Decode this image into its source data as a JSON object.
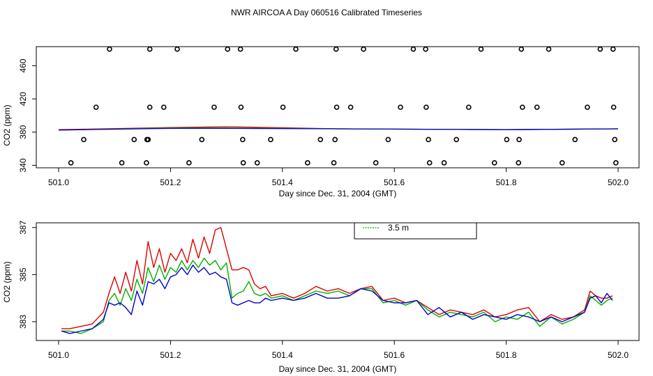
{
  "title": "NWR AIRCOA A  Day 060516  Calibrated Timeseries",
  "colors": {
    "red": "#dd0000",
    "green": "#00b000",
    "blue": "#0000cc",
    "black": "#000000"
  },
  "chart_data": [
    {
      "type": "scatter",
      "xlabel": "Day since Dec. 31, 2004 (GMT)",
      "ylabel": "CO2 (ppm)",
      "xlim": [
        501.0,
        502.0
      ],
      "ylim": [
        337,
        483
      ],
      "xticks": [
        501.0,
        501.2,
        501.4,
        501.6,
        501.8,
        502.0
      ],
      "xtick_labels": [
        "501.0",
        "501.2",
        "501.4",
        "501.6",
        "501.8",
        "502.0"
      ],
      "yticks": [
        340,
        380,
        420,
        460
      ],
      "ytick_labels": [
        "340",
        "380",
        "420",
        "460"
      ],
      "points": [
        {
          "y": 480,
          "x": [
            501.091,
            501.163,
            501.212,
            501.302,
            501.325,
            501.424,
            501.496,
            501.545,
            501.634,
            501.656,
            501.755,
            501.827,
            501.876,
            501.968,
            501.991
          ]
        },
        {
          "y": 410,
          "x": [
            501.067,
            501.163,
            501.188,
            501.278,
            501.326,
            501.401,
            501.497,
            501.522,
            501.611,
            501.657,
            501.733,
            501.829,
            501.855,
            501.945,
            501.992
          ]
        },
        {
          "y": 371,
          "x": [
            501.045,
            501.135,
            501.158,
            501.16,
            501.256,
            501.329,
            501.379,
            501.468,
            501.494,
            501.589,
            501.661,
            501.711,
            501.801,
            501.823,
            501.923,
            501.994
          ]
        },
        {
          "y": 343,
          "x": [
            501.022,
            501.113,
            501.157,
            501.233,
            501.33,
            501.355,
            501.445,
            501.492,
            501.567,
            501.663,
            501.689,
            501.779,
            501.822,
            501.9,
            501.996
          ]
        }
      ],
      "series": [
        {
          "color": "red",
          "x": [
            501.0,
            501.2,
            501.3,
            501.5,
            501.8,
            502.0
          ],
          "values": [
            383,
            385.5,
            386.5,
            384,
            383,
            384
          ]
        },
        {
          "color": "green",
          "x": [
            501.0,
            501.2,
            501.3,
            501.5,
            501.8,
            502.0
          ],
          "values": [
            382.5,
            385,
            385,
            384,
            383,
            384
          ]
        },
        {
          "color": "blue",
          "x": [
            501.0,
            501.2,
            501.3,
            501.5,
            501.8,
            502.0
          ],
          "values": [
            382.5,
            384.5,
            384.5,
            384,
            383,
            384
          ]
        }
      ]
    },
    {
      "type": "line",
      "xlabel": "Day since Dec. 31, 2004 (GMT)",
      "ylabel": "CO2 (ppm)",
      "xlim": [
        501.0,
        502.0
      ],
      "ylim": [
        382.2,
        387.2
      ],
      "xticks": [
        501.0,
        501.2,
        501.4,
        501.6,
        501.8,
        502.0
      ],
      "xtick_labels": [
        "501.0",
        "501.2",
        "501.4",
        "501.6",
        "501.8",
        "502.0"
      ],
      "yticks": [
        383,
        385,
        387
      ],
      "ytick_labels": [
        "383",
        "385",
        "387"
      ],
      "legend": {
        "position": "top-center",
        "entries": [
          {
            "label": "3.5 m",
            "color": "green"
          }
        ]
      },
      "series": [
        {
          "name": "",
          "color": "red",
          "x": [
            501.005,
            501.02,
            501.04,
            501.06,
            501.08,
            501.09,
            501.1,
            501.11,
            501.12,
            501.13,
            501.14,
            501.15,
            501.16,
            501.17,
            501.18,
            501.19,
            501.2,
            501.21,
            501.22,
            501.23,
            501.24,
            501.25,
            501.26,
            501.27,
            501.28,
            501.29,
            501.3,
            501.31,
            501.32,
            501.33,
            501.34,
            501.35,
            501.36,
            501.37,
            501.38,
            501.4,
            501.42,
            501.44,
            501.46,
            501.48,
            501.5,
            501.52,
            501.54,
            501.56,
            501.58,
            501.6,
            501.62,
            501.64,
            501.66,
            501.68,
            501.7,
            501.72,
            501.74,
            501.76,
            501.78,
            501.8,
            501.82,
            501.84,
            501.86,
            501.88,
            501.9,
            501.92,
            501.94,
            501.95,
            501.96,
            501.97,
            501.98,
            501.99
          ],
          "values": [
            382.7,
            382.7,
            382.8,
            382.9,
            383.4,
            384.2,
            384.9,
            384.2,
            385.1,
            384.3,
            385.6,
            384.6,
            386.4,
            385.3,
            386.1,
            385.1,
            385.9,
            385.6,
            386.1,
            385.5,
            386.5,
            385.7,
            386.6,
            385.9,
            386.9,
            387.0,
            386.1,
            385.2,
            385.2,
            385.3,
            385.2,
            384.6,
            384.4,
            384.5,
            384.1,
            384.2,
            384.0,
            384.2,
            384.5,
            384.3,
            384.4,
            384.2,
            384.4,
            384.5,
            383.9,
            384.0,
            383.8,
            383.9,
            383.6,
            383.3,
            383.5,
            383.4,
            383.3,
            383.5,
            383.2,
            383.3,
            383.5,
            383.6,
            383.0,
            383.3,
            383.1,
            383.2,
            383.5,
            384.3,
            384.1,
            384.0,
            384.0,
            384.1
          ]
        },
        {
          "name": "3.5 m",
          "color": "green",
          "x": [
            501.005,
            501.02,
            501.04,
            501.06,
            501.08,
            501.09,
            501.1,
            501.11,
            501.12,
            501.13,
            501.14,
            501.15,
            501.16,
            501.17,
            501.18,
            501.19,
            501.2,
            501.21,
            501.22,
            501.23,
            501.24,
            501.25,
            501.26,
            501.27,
            501.28,
            501.29,
            501.3,
            501.31,
            501.32,
            501.33,
            501.34,
            501.35,
            501.36,
            501.37,
            501.38,
            501.4,
            501.42,
            501.44,
            501.46,
            501.48,
            501.5,
            501.52,
            501.54,
            501.56,
            501.58,
            501.6,
            501.62,
            501.64,
            501.66,
            501.68,
            501.7,
            501.72,
            501.74,
            501.76,
            501.78,
            501.8,
            501.82,
            501.84,
            501.86,
            501.88,
            501.9,
            501.92,
            501.94,
            501.95,
            501.96,
            501.97,
            501.98,
            501.99
          ],
          "values": [
            382.6,
            382.6,
            382.5,
            382.7,
            383.0,
            383.9,
            384.2,
            383.7,
            384.4,
            383.9,
            384.8,
            384.2,
            385.3,
            384.7,
            385.4,
            384.8,
            385.3,
            385.1,
            385.6,
            385.2,
            385.6,
            385.3,
            385.7,
            385.4,
            385.6,
            385.2,
            385.5,
            384.0,
            384.2,
            384.3,
            384.7,
            384.2,
            384.1,
            384.2,
            384.0,
            384.1,
            383.9,
            384.1,
            384.3,
            384.2,
            384.3,
            384.1,
            384.4,
            384.4,
            383.8,
            383.9,
            383.7,
            383.9,
            383.5,
            383.2,
            383.4,
            383.3,
            383.2,
            383.4,
            383.0,
            383.2,
            383.1,
            383.4,
            382.8,
            383.2,
            382.9,
            383.1,
            383.4,
            384.1,
            383.9,
            383.7,
            383.9,
            384.0
          ]
        },
        {
          "name": "",
          "color": "blue",
          "x": [
            501.005,
            501.02,
            501.04,
            501.06,
            501.08,
            501.09,
            501.1,
            501.11,
            501.12,
            501.13,
            501.14,
            501.15,
            501.16,
            501.17,
            501.18,
            501.19,
            501.2,
            501.21,
            501.22,
            501.23,
            501.24,
            501.25,
            501.26,
            501.27,
            501.28,
            501.29,
            501.3,
            501.31,
            501.32,
            501.33,
            501.34,
            501.35,
            501.36,
            501.37,
            501.38,
            501.4,
            501.42,
            501.44,
            501.46,
            501.48,
            501.5,
            501.52,
            501.54,
            501.56,
            501.58,
            501.6,
            501.62,
            501.64,
            501.66,
            501.68,
            501.7,
            501.72,
            501.74,
            501.76,
            501.78,
            501.8,
            501.82,
            501.84,
            501.86,
            501.88,
            501.9,
            501.92,
            501.94,
            501.95,
            501.96,
            501.97,
            501.98,
            501.99
          ],
          "values": [
            382.6,
            382.5,
            382.6,
            382.7,
            383.1,
            383.8,
            383.7,
            383.8,
            383.6,
            383.3,
            384.3,
            383.7,
            384.7,
            384.6,
            384.8,
            384.4,
            384.9,
            385.0,
            385.3,
            385.0,
            385.4,
            385.1,
            385.3,
            385.0,
            385.1,
            384.9,
            384.8,
            383.8,
            383.7,
            383.8,
            383.9,
            383.8,
            383.8,
            384.0,
            383.9,
            384.0,
            383.9,
            384.0,
            384.2,
            384.0,
            384.0,
            384.1,
            384.4,
            384.3,
            383.9,
            383.8,
            383.8,
            383.9,
            383.3,
            383.6,
            383.2,
            383.4,
            383.1,
            383.3,
            383.2,
            383.1,
            383.3,
            383.2,
            383.0,
            383.2,
            383.0,
            383.2,
            383.4,
            384.0,
            384.1,
            383.8,
            384.2,
            383.9
          ]
        }
      ]
    }
  ]
}
